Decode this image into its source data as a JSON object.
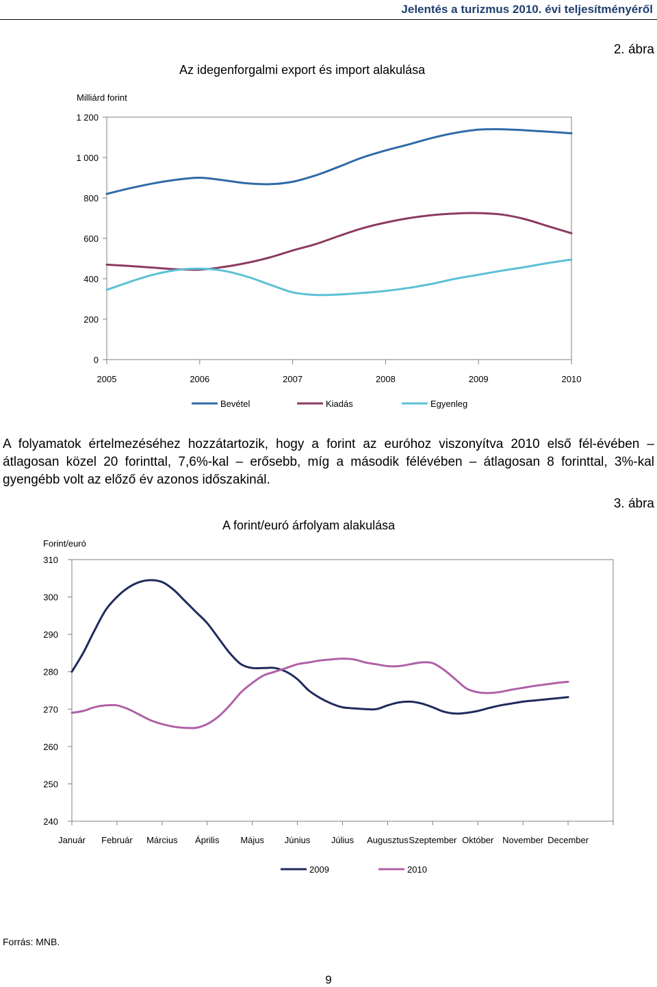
{
  "header": {
    "running_title": "Jelentés a turizmus 2010. évi teljesítményéről"
  },
  "figure2": {
    "label": "2. ábra",
    "title": "Az idegenforgalmi export és import alakulása",
    "y_unit": "Milliárd forint"
  },
  "paragraph": "A folyamatok értelmezéséhez hozzátartozik, hogy a forint az euróhoz viszonyítva 2010 első fél-évében – átlagosan közel 20 forinttal, 7,6%-kal – erősebb, míg a második félévében – átlagosan 8 forinttal, 3%-kal gyengébb volt az előző év azonos időszakinál.",
  "figure3": {
    "label": "3. ábra",
    "title": "A forint/euró árfolyam alakulása",
    "y_unit": "Forint/euró"
  },
  "footer": {
    "source": "Forrás: MNB.",
    "page_number": "9"
  },
  "chart_data": [
    {
      "type": "line",
      "title": "Az idegenforgalmi export és import alakulása",
      "ylabel": "Milliárd forint",
      "ylim": [
        0,
        1200
      ],
      "yticks": [
        0,
        200,
        400,
        600,
        800,
        1000,
        1200
      ],
      "ytick_labels": [
        "0",
        "200",
        "400",
        "600",
        "800",
        "1 000",
        "1 200"
      ],
      "xlim": [
        2005,
        2010
      ],
      "xticks": [
        2005,
        2006,
        2007,
        2008,
        2009,
        2010
      ],
      "xtick_labels": [
        "2005",
        "2006",
        "2007",
        "2008",
        "2009",
        "2010"
      ],
      "legend_position": "bottom",
      "series": [
        {
          "name": "Bevétel",
          "color": "#2e6aa8",
          "x": [
            2005,
            2005.25,
            2005.5,
            2005.75,
            2006,
            2006.25,
            2006.5,
            2006.75,
            2007,
            2007.25,
            2007.5,
            2007.75,
            2008,
            2008.25,
            2008.5,
            2008.75,
            2009,
            2009.25,
            2009.5,
            2009.75,
            2010
          ],
          "y": [
            820,
            848,
            872,
            890,
            900,
            888,
            873,
            868,
            880,
            912,
            955,
            1000,
            1035,
            1065,
            1097,
            1122,
            1138,
            1140,
            1135,
            1128,
            1120
          ]
        },
        {
          "name": "Kiadás",
          "color": "#8b3a62",
          "x": [
            2005,
            2005.25,
            2005.5,
            2005.75,
            2006,
            2006.25,
            2006.5,
            2006.75,
            2007,
            2007.25,
            2007.5,
            2007.75,
            2008,
            2008.25,
            2008.5,
            2008.75,
            2009,
            2009.25,
            2009.5,
            2009.75,
            2010
          ],
          "y": [
            470,
            463,
            455,
            447,
            445,
            458,
            478,
            505,
            540,
            572,
            612,
            650,
            678,
            700,
            715,
            723,
            725,
            718,
            695,
            660,
            625
          ]
        },
        {
          "name": "Egyenleg",
          "color": "#5bc0d6",
          "x": [
            2005,
            2005.25,
            2005.5,
            2005.75,
            2006,
            2006.25,
            2006.5,
            2006.75,
            2007,
            2007.25,
            2007.5,
            2007.75,
            2008,
            2008.25,
            2008.5,
            2008.75,
            2009,
            2009.25,
            2009.5,
            2009.75,
            2010
          ],
          "y": [
            345,
            385,
            420,
            443,
            450,
            440,
            412,
            372,
            333,
            320,
            322,
            330,
            340,
            355,
            375,
            400,
            420,
            440,
            458,
            478,
            495
          ]
        }
      ]
    },
    {
      "type": "line",
      "title": "A forint/euró árfolyam alakulása",
      "ylabel": "Forint/euró",
      "ylim": [
        240,
        310
      ],
      "yticks": [
        240,
        250,
        260,
        270,
        280,
        290,
        300,
        310
      ],
      "ytick_labels": [
        "240",
        "250",
        "260",
        "270",
        "280",
        "290",
        "300",
        "310"
      ],
      "categories": [
        "Január",
        "Február",
        "Március",
        "Április",
        "Május",
        "Június",
        "Július",
        "Augusztus",
        "Szeptember",
        "Október",
        "November",
        "December"
      ],
      "legend_position": "bottom",
      "series": [
        {
          "name": "2009",
          "color": "#1f2a5c",
          "x": [
            1,
            1.25,
            1.5,
            1.75,
            2,
            2.25,
            2.5,
            2.75,
            3,
            3.25,
            3.5,
            3.75,
            4,
            4.25,
            4.5,
            4.75,
            5,
            5.25,
            5.5,
            5.75,
            6,
            6.25,
            6.5,
            6.75,
            7,
            7.25,
            7.5,
            7.75,
            8,
            8.25,
            8.5,
            8.75,
            9,
            9.25,
            9.5,
            9.75,
            10,
            10.25,
            10.5,
            10.75,
            11,
            11.25,
            11.5,
            11.75,
            12
          ],
          "y": [
            280,
            285,
            291,
            296.5,
            300,
            302.5,
            304,
            304.5,
            304,
            302,
            299,
            296,
            293,
            289,
            285,
            282,
            281,
            281,
            281,
            280,
            278,
            275,
            273,
            271.5,
            270.5,
            270.2,
            270.0,
            270.0,
            271,
            271.8,
            272,
            271.5,
            270.5,
            269.3,
            268.8,
            269.0,
            269.5,
            270.3,
            271,
            271.5,
            272,
            272.3,
            272.6,
            272.9,
            273.2
          ]
        },
        {
          "name": "2010",
          "color": "#b060a8",
          "x": [
            1,
            1.25,
            1.5,
            1.75,
            2,
            2.25,
            2.5,
            2.75,
            3,
            3.25,
            3.5,
            3.75,
            4,
            4.25,
            4.5,
            4.75,
            5,
            5.25,
            5.5,
            5.75,
            6,
            6.25,
            6.5,
            6.75,
            7,
            7.25,
            7.5,
            7.75,
            8,
            8.25,
            8.5,
            8.75,
            9,
            9.25,
            9.5,
            9.75,
            10,
            10.25,
            10.5,
            10.75,
            11,
            11.25,
            11.5,
            11.75,
            12
          ],
          "y": [
            269,
            269.5,
            270.5,
            271,
            271,
            270,
            268.5,
            267,
            266,
            265.3,
            265,
            265,
            266,
            268,
            271,
            274.5,
            277,
            279,
            280,
            281,
            282,
            282.5,
            283,
            283.3,
            283.5,
            283.3,
            282.5,
            282,
            281.5,
            281.5,
            282,
            282.5,
            282.3,
            280.5,
            278,
            275.5,
            274.5,
            274.3,
            274.6,
            275.2,
            275.7,
            276.2,
            276.6,
            277,
            277.3
          ]
        }
      ]
    }
  ]
}
